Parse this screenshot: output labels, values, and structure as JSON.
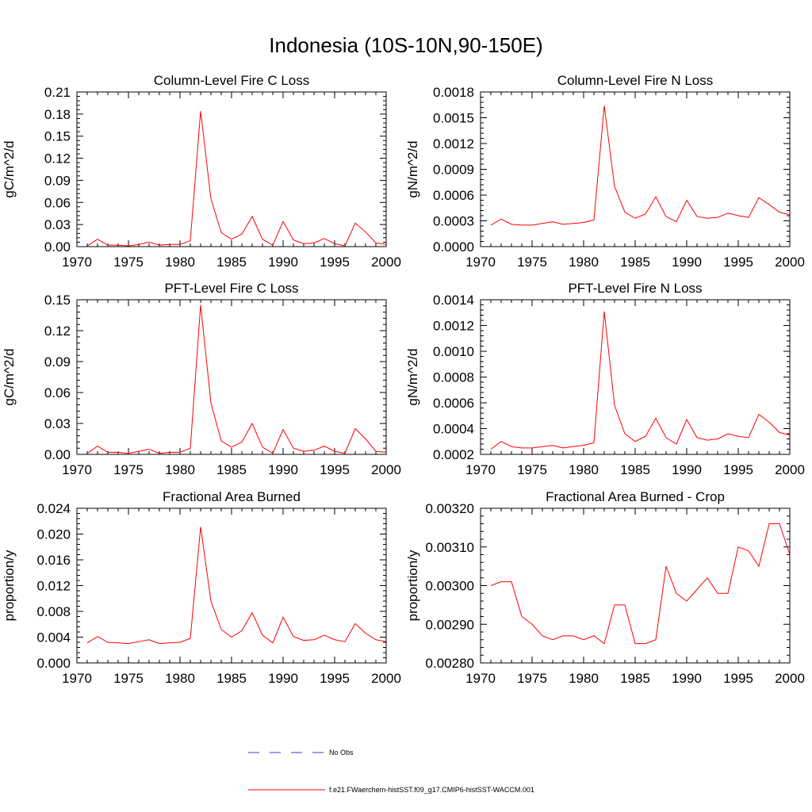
{
  "main_title": "Indonesia (10S-10N,90-150E)",
  "colors": {
    "model_line": "#ff0000",
    "obs_line": "#3b3bd6",
    "axes": "#000000"
  },
  "legend": {
    "obs_label": "No Obs",
    "model_label": "f.e21.FWaerchem-histSST.f09_g17.CMIP6-histSST-WACCM.001"
  },
  "chart_data": [
    {
      "type": "line",
      "title": "Column-Level Fire C Loss",
      "ylabel": "gC/m^2/d",
      "xlim": [
        1970,
        2000
      ],
      "ylim": [
        0,
        0.21
      ],
      "x_ticks": [
        "1970",
        "1975",
        "1980",
        "1985",
        "1990",
        "1995",
        "2000"
      ],
      "y_ticks": [
        "0.00",
        "0.03",
        "0.06",
        "0.09",
        "0.12",
        "0.15",
        "0.18",
        "0.21"
      ],
      "grid": false,
      "x": [
        1971,
        1972,
        1973,
        1974,
        1975,
        1976,
        1977,
        1978,
        1979,
        1980,
        1981,
        1982,
        1983,
        1984,
        1985,
        1986,
        1987,
        1988,
        1989,
        1990,
        1991,
        1992,
        1993,
        1994,
        1995,
        1996,
        1997,
        1998,
        1999,
        2000
      ],
      "series": [
        {
          "values": [
            0.001,
            0.01,
            0.002,
            0.002,
            0.001,
            0.003,
            0.006,
            0.002,
            0.003,
            0.003,
            0.008,
            0.184,
            0.065,
            0.019,
            0.01,
            0.017,
            0.041,
            0.01,
            0.002,
            0.034,
            0.009,
            0.004,
            0.005,
            0.011,
            0.004,
            0.001,
            0.032,
            0.02,
            0.005,
            0.003
          ]
        }
      ]
    },
    {
      "type": "line",
      "title": "Column-Level Fire N Loss",
      "ylabel": "gN/m^2/d",
      "xlim": [
        1970,
        2000
      ],
      "ylim": [
        0,
        0.0018
      ],
      "x_ticks": [
        "1970",
        "1975",
        "1980",
        "1985",
        "1990",
        "1995",
        "2000"
      ],
      "y_ticks": [
        "0.0000",
        "0.0003",
        "0.0006",
        "0.0009",
        "0.0012",
        "0.0015",
        "0.0018"
      ],
      "grid": false,
      "x": [
        1971,
        1972,
        1973,
        1974,
        1975,
        1976,
        1977,
        1978,
        1979,
        1980,
        1981,
        1982,
        1983,
        1984,
        1985,
        1986,
        1987,
        1988,
        1989,
        1990,
        1991,
        1992,
        1993,
        1994,
        1995,
        1996,
        1997,
        1998,
        1999,
        2000
      ],
      "series": [
        {
          "values": [
            0.00025,
            0.00032,
            0.00026,
            0.00025,
            0.00025,
            0.00027,
            0.00029,
            0.00026,
            0.00027,
            0.00028,
            0.00031,
            0.00164,
            0.0007,
            0.0004,
            0.00033,
            0.00038,
            0.00058,
            0.00035,
            0.00029,
            0.00054,
            0.00035,
            0.00033,
            0.00034,
            0.00039,
            0.00036,
            0.00034,
            0.00057,
            0.00049,
            0.0004,
            0.00037
          ]
        }
      ]
    },
    {
      "type": "line",
      "title": "PFT-Level Fire C Loss",
      "ylabel": "gC/m^2/d",
      "xlim": [
        1970,
        2000
      ],
      "ylim": [
        0,
        0.15
      ],
      "x_ticks": [
        "1970",
        "1975",
        "1980",
        "1985",
        "1990",
        "1995",
        "2000"
      ],
      "y_ticks": [
        "0.00",
        "0.03",
        "0.06",
        "0.09",
        "0.12",
        "0.15"
      ],
      "grid": false,
      "x": [
        1971,
        1972,
        1973,
        1974,
        1975,
        1976,
        1977,
        1978,
        1979,
        1980,
        1981,
        1982,
        1983,
        1984,
        1985,
        1986,
        1987,
        1988,
        1989,
        1990,
        1991,
        1992,
        1993,
        1994,
        1995,
        1996,
        1997,
        1998,
        1999,
        2000
      ],
      "series": [
        {
          "values": [
            0.001,
            0.008,
            0.002,
            0.002,
            0.001,
            0.003,
            0.005,
            0.001,
            0.002,
            0.002,
            0.006,
            0.145,
            0.05,
            0.013,
            0.007,
            0.012,
            0.03,
            0.007,
            0.001,
            0.024,
            0.006,
            0.003,
            0.004,
            0.008,
            0.003,
            0.001,
            0.025,
            0.015,
            0.003,
            0.002
          ]
        }
      ]
    },
    {
      "type": "line",
      "title": "PFT-Level Fire N Loss",
      "ylabel": "gN/m^2/d",
      "xlim": [
        1970,
        2000
      ],
      "ylim": [
        0.0002,
        0.0014
      ],
      "x_ticks": [
        "1970",
        "1975",
        "1980",
        "1985",
        "1990",
        "1995",
        "2000"
      ],
      "y_ticks": [
        "0.0002",
        "0.0004",
        "0.0006",
        "0.0008",
        "0.0010",
        "0.0012",
        "0.0014"
      ],
      "grid": false,
      "x": [
        1971,
        1972,
        1973,
        1974,
        1975,
        1976,
        1977,
        1978,
        1979,
        1980,
        1981,
        1982,
        1983,
        1984,
        1985,
        1986,
        1987,
        1988,
        1989,
        1990,
        1991,
        1992,
        1993,
        1994,
        1995,
        1996,
        1997,
        1998,
        1999,
        2000
      ],
      "series": [
        {
          "values": [
            0.00024,
            0.0003,
            0.00026,
            0.00025,
            0.00025,
            0.00026,
            0.00027,
            0.00025,
            0.00026,
            0.00027,
            0.00029,
            0.00131,
            0.00058,
            0.00036,
            0.0003,
            0.00034,
            0.00048,
            0.00033,
            0.00028,
            0.00047,
            0.00033,
            0.00031,
            0.00032,
            0.00036,
            0.00034,
            0.00033,
            0.00051,
            0.00045,
            0.00037,
            0.00035
          ]
        }
      ]
    },
    {
      "type": "line",
      "title": "Fractional Area Burned",
      "ylabel": "proportion/y",
      "xlim": [
        1970,
        2000
      ],
      "ylim": [
        0,
        0.024
      ],
      "x_ticks": [
        "1970",
        "1975",
        "1980",
        "1985",
        "1990",
        "1995",
        "2000"
      ],
      "y_ticks": [
        "0.000",
        "0.004",
        "0.008",
        "0.012",
        "0.016",
        "0.020",
        "0.024"
      ],
      "grid": false,
      "x": [
        1971,
        1972,
        1973,
        1974,
        1975,
        1976,
        1977,
        1978,
        1979,
        1980,
        1981,
        1982,
        1983,
        1984,
        1985,
        1986,
        1987,
        1988,
        1989,
        1990,
        1991,
        1992,
        1993,
        1994,
        1995,
        1996,
        1997,
        1998,
        1999,
        2000
      ],
      "series": [
        {
          "values": [
            0.0031,
            0.0041,
            0.0032,
            0.0031,
            0.003,
            0.0033,
            0.0036,
            0.003,
            0.0031,
            0.0032,
            0.0038,
            0.0211,
            0.0096,
            0.0052,
            0.004,
            0.005,
            0.0078,
            0.0043,
            0.0031,
            0.0071,
            0.0041,
            0.0035,
            0.0036,
            0.0043,
            0.0036,
            0.0033,
            0.0061,
            0.0046,
            0.0036,
            0.0033
          ]
        }
      ]
    },
    {
      "type": "line",
      "title": "Fractional Area Burned - Crop",
      "ylabel": "proportion/y",
      "xlim": [
        1970,
        2000
      ],
      "ylim": [
        0.0028,
        0.0032
      ],
      "x_ticks": [
        "1970",
        "1975",
        "1980",
        "1985",
        "1990",
        "1995",
        "2000"
      ],
      "y_ticks": [
        "0.00280",
        "0.00290",
        "0.00300",
        "0.00310",
        "0.00320"
      ],
      "grid": false,
      "x": [
        1971,
        1972,
        1973,
        1974,
        1975,
        1976,
        1977,
        1978,
        1979,
        1980,
        1981,
        1982,
        1983,
        1984,
        1985,
        1986,
        1987,
        1988,
        1989,
        1990,
        1991,
        1992,
        1993,
        1994,
        1995,
        1996,
        1997,
        1998,
        1999,
        2000
      ],
      "series": [
        {
          "values": [
            0.003,
            0.00301,
            0.00301,
            0.00292,
            0.0029,
            0.00287,
            0.00286,
            0.00287,
            0.00287,
            0.00286,
            0.00287,
            0.00285,
            0.00295,
            0.00295,
            0.00285,
            0.00285,
            0.00286,
            0.00305,
            0.00298,
            0.00296,
            0.00299,
            0.00302,
            0.00298,
            0.00298,
            0.0031,
            0.00309,
            0.00305,
            0.00316,
            0.00316,
            0.00308
          ]
        }
      ]
    }
  ]
}
